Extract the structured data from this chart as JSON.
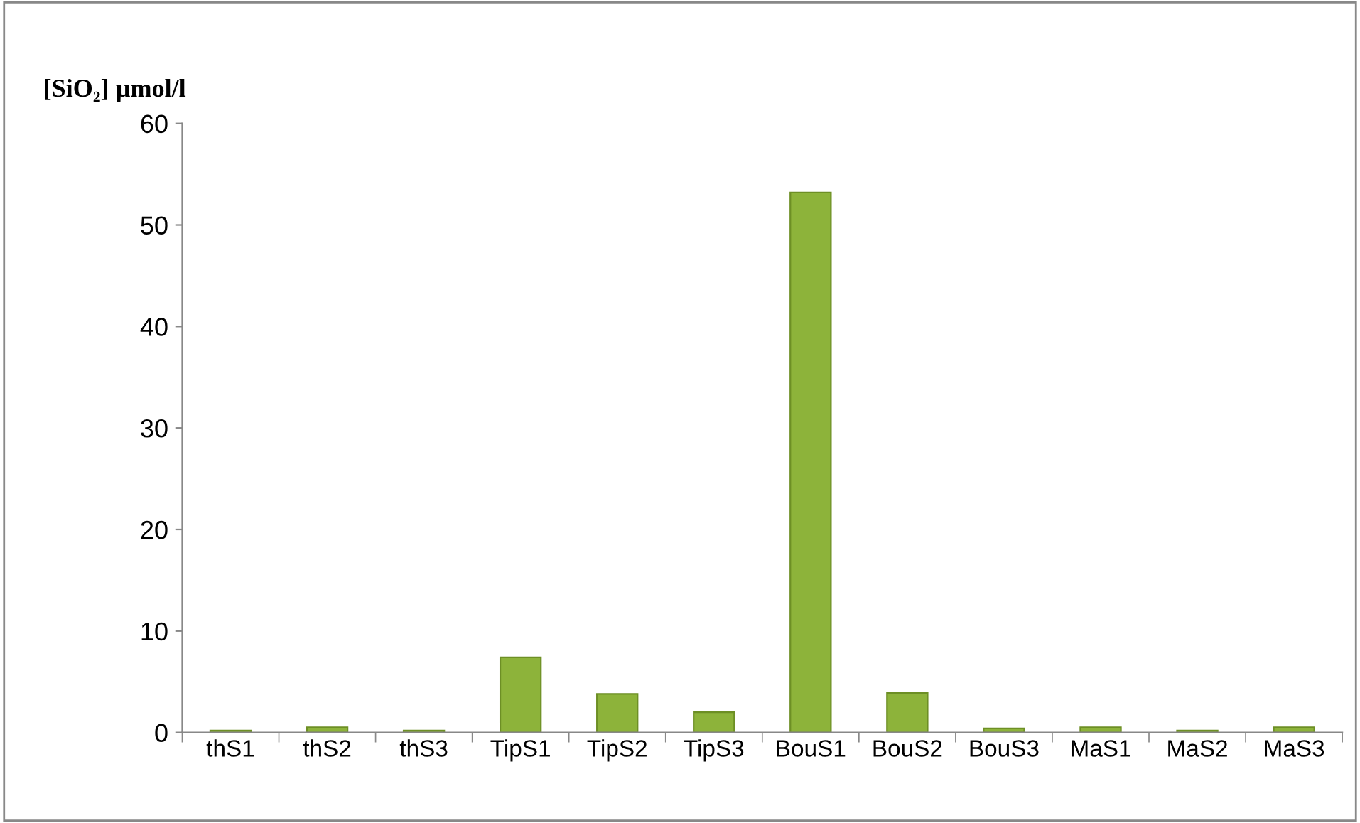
{
  "chart_data": {
    "type": "bar",
    "ylabel": "[SiO₂] µmol/l",
    "categories": [
      "thS1",
      "thS2",
      "thS3",
      "TipS1",
      "TipS2",
      "TipS3",
      "BouS1",
      "BouS2",
      "BouS3",
      "MaS1",
      "MaS2",
      "MaS3"
    ],
    "values": [
      0.2,
      0.5,
      0.2,
      7.4,
      3.8,
      2.0,
      53.2,
      3.9,
      0.4,
      0.5,
      0.2,
      0.5
    ],
    "color": "#8db33a",
    "ylim": [
      0,
      60
    ],
    "yticks": [
      0,
      10,
      20,
      30,
      40,
      50,
      60
    ],
    "grid": false
  }
}
